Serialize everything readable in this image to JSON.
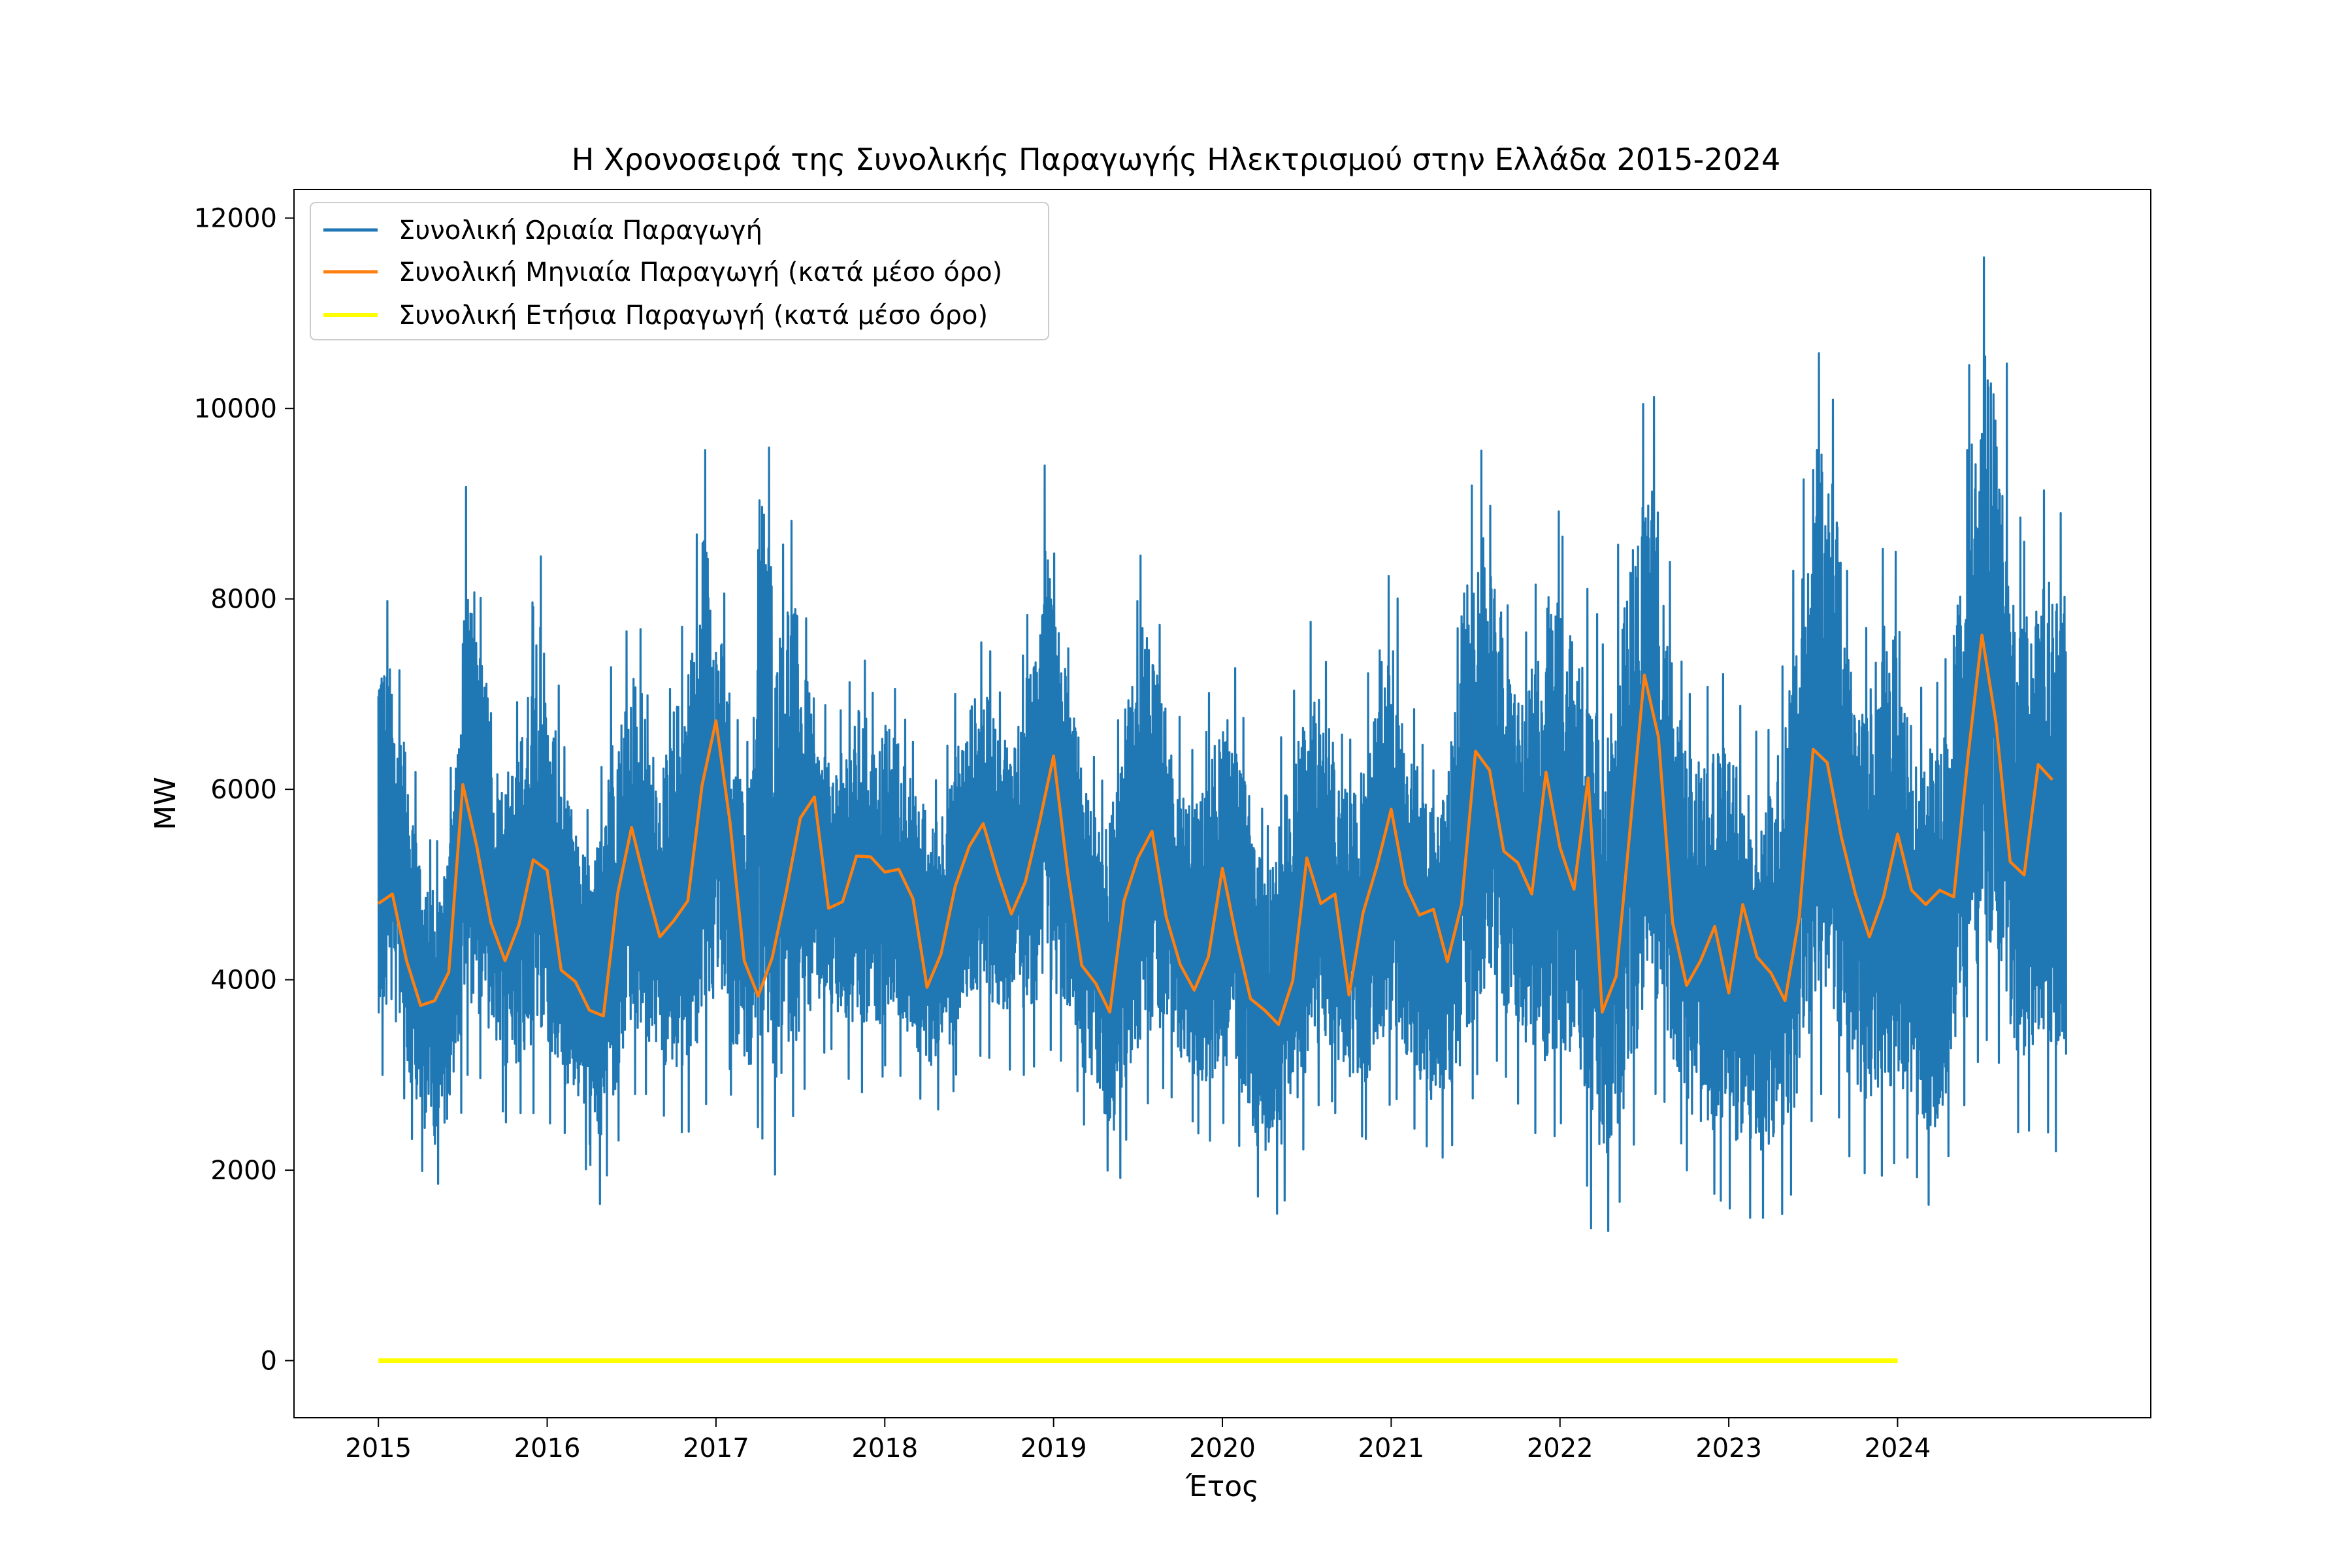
{
  "chart_data": {
    "type": "line",
    "title": "Η Χρονοσειρά της Συνολικής Παραγωγής Ηλεκτρισμού στην Ελλάδα 2015-2024",
    "xlabel": "Έτος",
    "ylabel": "MW",
    "xlim": [
      2014.5,
      2025.5
    ],
    "ylim": [
      -600,
      12300
    ],
    "x_ticks": [
      2015,
      2016,
      2017,
      2018,
      2019,
      2020,
      2021,
      2022,
      2023,
      2024
    ],
    "y_ticks": [
      0,
      2000,
      4000,
      6000,
      8000,
      10000,
      12000
    ],
    "grid": false,
    "legend_position": "top-left",
    "series": [
      {
        "name": "Συνολική Ωριαία Παραγωγή",
        "color": "#1f77b4",
        "envelope_monthly": {
          "x": [
            2015.0,
            2015.083,
            2015.167,
            2015.25,
            2015.333,
            2015.417,
            2015.5,
            2015.583,
            2015.667,
            2015.75,
            2015.833,
            2015.917,
            2016.0,
            2016.083,
            2016.167,
            2016.25,
            2016.333,
            2016.417,
            2016.5,
            2016.583,
            2016.667,
            2016.75,
            2016.833,
            2016.917,
            2017.0,
            2017.083,
            2017.167,
            2017.25,
            2017.333,
            2017.417,
            2017.5,
            2017.583,
            2017.667,
            2017.75,
            2017.833,
            2017.917,
            2018.0,
            2018.083,
            2018.167,
            2018.25,
            2018.333,
            2018.417,
            2018.5,
            2018.583,
            2018.667,
            2018.75,
            2018.833,
            2018.917,
            2019.0,
            2019.083,
            2019.167,
            2019.25,
            2019.333,
            2019.417,
            2019.5,
            2019.583,
            2019.667,
            2019.75,
            2019.833,
            2019.917,
            2020.0,
            2020.083,
            2020.167,
            2020.25,
            2020.333,
            2020.417,
            2020.5,
            2020.583,
            2020.667,
            2020.75,
            2020.833,
            2020.917,
            2021.0,
            2021.083,
            2021.167,
            2021.25,
            2021.333,
            2021.417,
            2021.5,
            2021.583,
            2021.667,
            2021.75,
            2021.833,
            2021.917,
            2022.0,
            2022.083,
            2022.167,
            2022.25,
            2022.333,
            2022.417,
            2022.5,
            2022.583,
            2022.667,
            2022.75,
            2022.833,
            2022.917,
            2023.0,
            2023.083,
            2023.167,
            2023.25,
            2023.333,
            2023.417,
            2023.5,
            2023.583,
            2023.667,
            2023.75,
            2023.833,
            2023.917,
            2024.0,
            2024.083,
            2024.167,
            2024.25,
            2024.333,
            2024.417,
            2024.5,
            2024.583,
            2024.667,
            2024.75,
            2024.833,
            2024.917
          ],
          "max": [
            8200,
            7500,
            6500,
            5500,
            5400,
            6000,
            9300,
            8200,
            6800,
            6700,
            7200,
            8800,
            7500,
            6500,
            6000,
            5500,
            7200,
            7500,
            8000,
            7000,
            6800,
            7500,
            8200,
            9700,
            8500,
            7000,
            6000,
            10400,
            8300,
            9000,
            8000,
            7000,
            6700,
            7000,
            7500,
            7000,
            7200,
            6800,
            6500,
            6000,
            6300,
            7000,
            7500,
            7600,
            7000,
            7200,
            7700,
            9600,
            8500,
            7500,
            6600,
            6000,
            6400,
            7500,
            8500,
            8000,
            7000,
            6500,
            6300,
            7000,
            7500,
            7000,
            6000,
            5500,
            6500,
            7000,
            7800,
            7500,
            6600,
            6500,
            7000,
            8200,
            8300,
            7000,
            6500,
            6200,
            7000,
            8900,
            9700,
            9000,
            8000,
            7500,
            8000,
            9100,
            8700,
            8200,
            8000,
            7500,
            8500,
            9500,
            10700,
            9000,
            7500,
            7000,
            7000,
            7300,
            7000,
            6700,
            6500,
            6800,
            8000,
            9000,
            10600,
            10500,
            8500,
            7500,
            8000,
            9100,
            7700,
            7000,
            7200,
            7000,
            8800,
            10400,
            11600,
            11400,
            9000,
            8600,
            9200,
            8900
          ],
          "min": [
            3000,
            3000,
            2400,
            2000,
            1800,
            2300,
            3000,
            3000,
            2700,
            2500,
            2600,
            2600,
            2500,
            2400,
            2300,
            1500,
            1900,
            2300,
            2800,
            2800,
            2600,
            2400,
            2400,
            2600,
            3300,
            2800,
            2500,
            2400,
            1900,
            2500,
            2800,
            3200,
            3300,
            3000,
            2800,
            2900,
            3100,
            3000,
            2800,
            2600,
            2700,
            3000,
            3200,
            3200,
            3100,
            3000,
            3000,
            3300,
            3200,
            3000,
            2500,
            2200,
            1700,
            2300,
            2600,
            2900,
            2800,
            2600,
            2400,
            2300,
            2500,
            2300,
            1800,
            1500,
            1600,
            2000,
            2600,
            2800,
            2600,
            2400,
            2300,
            2600,
            2800,
            2500,
            2300,
            2100,
            2200,
            2600,
            3000,
            3200,
            3000,
            2700,
            2400,
            2300,
            2500,
            2200,
            1400,
            1300,
            1600,
            2200,
            2800,
            2800,
            2400,
            2000,
            1800,
            1700,
            1600,
            1500,
            1500,
            1500,
            1600,
            2300,
            2800,
            2800,
            2200,
            2000,
            1900,
            2000,
            2200,
            2000,
            1600,
            2000,
            2500,
            3000,
            3400,
            3200,
            2400,
            2400,
            2500,
            2200
          ]
        }
      },
      {
        "name": "Συνολική Μηνιαία Παραγωγή (κατά μέσο όρο)",
        "color": "#ff7f0e",
        "x": [
          2015.0,
          2015.083,
          2015.167,
          2015.25,
          2015.333,
          2015.417,
          2015.5,
          2015.583,
          2015.667,
          2015.75,
          2015.833,
          2015.917,
          2016.0,
          2016.083,
          2016.167,
          2016.25,
          2016.333,
          2016.417,
          2016.5,
          2016.583,
          2016.667,
          2016.75,
          2016.833,
          2016.917,
          2017.0,
          2017.083,
          2017.167,
          2017.25,
          2017.333,
          2017.417,
          2017.5,
          2017.583,
          2017.667,
          2017.75,
          2017.833,
          2017.917,
          2018.0,
          2018.083,
          2018.167,
          2018.25,
          2018.333,
          2018.417,
          2018.5,
          2018.583,
          2018.667,
          2018.75,
          2018.833,
          2018.917,
          2019.0,
          2019.083,
          2019.167,
          2019.25,
          2019.333,
          2019.417,
          2019.5,
          2019.583,
          2019.667,
          2019.75,
          2019.833,
          2019.917,
          2020.0,
          2020.083,
          2020.167,
          2020.25,
          2020.333,
          2020.417,
          2020.5,
          2020.583,
          2020.667,
          2020.75,
          2020.833,
          2020.917,
          2021.0,
          2021.083,
          2021.167,
          2021.25,
          2021.333,
          2021.417,
          2021.5,
          2021.583,
          2021.667,
          2021.75,
          2021.833,
          2021.917,
          2022.0,
          2022.083,
          2022.167,
          2022.25,
          2022.333,
          2022.417,
          2022.5,
          2022.583,
          2022.667,
          2022.75,
          2022.833,
          2022.917,
          2023.0,
          2023.083,
          2023.167,
          2023.25,
          2023.333,
          2023.417,
          2023.5,
          2023.583,
          2023.667,
          2023.75,
          2023.833,
          2023.917,
          2024.0,
          2024.083,
          2024.167,
          2024.25,
          2024.333,
          2024.417,
          2024.5,
          2024.583,
          2024.667,
          2024.75,
          2024.833,
          2024.917
        ],
        "values": [
          4800,
          4900,
          4200,
          3730,
          3780,
          4080,
          6050,
          5400,
          4600,
          4200,
          4580,
          5260,
          5150,
          4100,
          3980,
          3680,
          3620,
          4900,
          5600,
          5000,
          4450,
          4620,
          4830,
          6040,
          6720,
          5650,
          4200,
          3830,
          4230,
          4930,
          5700,
          5920,
          4750,
          4820,
          5300,
          5290,
          5130,
          5160,
          4850,
          3920,
          4270,
          4980,
          5400,
          5640,
          5130,
          4690,
          5030,
          5660,
          6350,
          5130,
          4150,
          3960,
          3660,
          4830,
          5280,
          5560,
          4660,
          4160,
          3890,
          4240,
          5170,
          4440,
          3800,
          3680,
          3530,
          3990,
          5280,
          4800,
          4900,
          3840,
          4700,
          5200,
          5790,
          5000,
          4680,
          4740,
          4190,
          4790,
          6400,
          6200,
          5350,
          5230,
          4900,
          6180,
          5390,
          4950,
          6120,
          3660,
          4040,
          5620,
          7200,
          6550,
          4600,
          3940,
          4200,
          4560,
          3860,
          4790,
          4240,
          4070,
          3780,
          4650,
          6420,
          6280,
          5500,
          4900,
          4450,
          4870,
          5530,
          4940,
          4790,
          4940,
          4870,
          6340,
          7620,
          6700,
          5240,
          5100,
          6260,
          6100
        ]
      },
      {
        "name": "Συνολική Ετήσια Παραγωγή (κατά μέσο όρο)",
        "color": "#ffff00",
        "x": [
          2015,
          2016,
          2017,
          2018,
          2019,
          2020,
          2021,
          2022,
          2023,
          2024
        ],
        "values": [
          0,
          0,
          0,
          0,
          0,
          0,
          0,
          0,
          0,
          0
        ]
      }
    ]
  }
}
